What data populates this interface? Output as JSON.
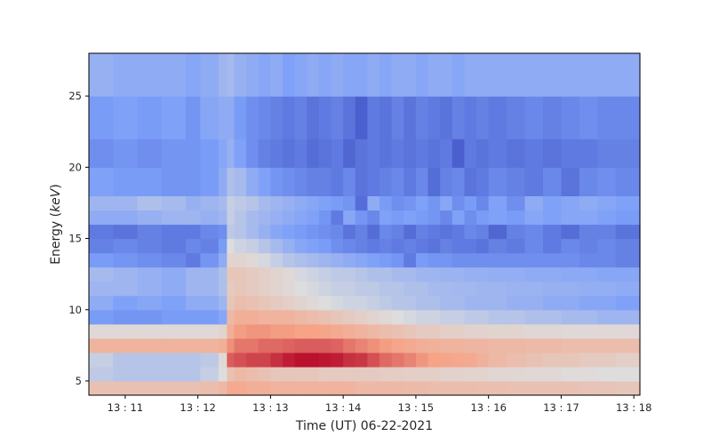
{
  "chart_data": {
    "type": "heatmap",
    "title": "",
    "xlabel": "Time (UT) 06-22-2021",
    "ylabel_prefix": "Energy (",
    "ylabel_unit": "keV",
    "ylabel_suffix": ")",
    "xlim": [
      "13:10:30",
      "13:18:05"
    ],
    "ylim": [
      4.0,
      28.0
    ],
    "x_ticks": [
      {
        "label": "13 : 11",
        "time": "13:11:00"
      },
      {
        "label": "13 : 12",
        "time": "13:12:00"
      },
      {
        "label": "13 : 13",
        "time": "13:13:00"
      },
      {
        "label": "13 : 14",
        "time": "13:14:00"
      },
      {
        "label": "13 : 15",
        "time": "13:15:00"
      },
      {
        "label": "13 : 16",
        "time": "13:16:00"
      },
      {
        "label": "13 : 17",
        "time": "13:17:00"
      },
      {
        "label": "13 : 18",
        "time": "13:18:00"
      }
    ],
    "y_ticks": [
      {
        "label": "5",
        "value": 5
      },
      {
        "label": "10",
        "value": 10
      },
      {
        "label": "15",
        "value": 15
      },
      {
        "label": "20",
        "value": 20
      },
      {
        "label": "25",
        "value": 25
      }
    ],
    "colormap": "coolwarm",
    "energy_bin_edges_keV": [
      4.0,
      5.0,
      6.0,
      7.0,
      8.0,
      9.0,
      10.0,
      11.0,
      12.0,
      13.0,
      14.0,
      15.0,
      16.0,
      17.0,
      18.0,
      20.0,
      22.0,
      25.0,
      28.0
    ],
    "time_bins": [
      {
        "start": "13:10:30",
        "end": "13:10:50"
      },
      {
        "start": "13:10:50",
        "end": "13:11:10"
      },
      {
        "start": "13:11:10",
        "end": "13:11:30"
      },
      {
        "start": "13:11:30",
        "end": "13:11:50"
      },
      {
        "start": "13:11:50",
        "end": "13:12:02"
      },
      {
        "start": "13:12:02",
        "end": "13:12:17"
      },
      {
        "start": "13:12:17",
        "end": "13:12:24"
      },
      {
        "start": "13:12:24",
        "end": "13:12:30"
      },
      {
        "start": "13:12:30",
        "end": "13:12:40"
      },
      {
        "start": "13:12:40",
        "end": "13:12:50"
      },
      {
        "start": "13:12:50",
        "end": "13:13:00"
      },
      {
        "start": "13:13:00",
        "end": "13:13:10"
      },
      {
        "start": "13:13:10",
        "end": "13:13:20"
      },
      {
        "start": "13:13:20",
        "end": "13:13:30"
      },
      {
        "start": "13:13:30",
        "end": "13:13:40"
      },
      {
        "start": "13:13:40",
        "end": "13:13:50"
      },
      {
        "start": "13:13:50",
        "end": "13:14:00"
      },
      {
        "start": "13:14:00",
        "end": "13:14:10"
      },
      {
        "start": "13:14:10",
        "end": "13:14:20"
      },
      {
        "start": "13:14:20",
        "end": "13:14:30"
      },
      {
        "start": "13:14:30",
        "end": "13:14:40"
      },
      {
        "start": "13:14:40",
        "end": "13:14:50"
      },
      {
        "start": "13:14:50",
        "end": "13:15:00"
      },
      {
        "start": "13:15:00",
        "end": "13:15:10"
      },
      {
        "start": "13:15:10",
        "end": "13:15:20"
      },
      {
        "start": "13:15:20",
        "end": "13:15:30"
      },
      {
        "start": "13:15:30",
        "end": "13:15:40"
      },
      {
        "start": "13:15:40",
        "end": "13:15:50"
      },
      {
        "start": "13:15:50",
        "end": "13:16:00"
      },
      {
        "start": "13:16:00",
        "end": "13:16:15"
      },
      {
        "start": "13:16:15",
        "end": "13:16:30"
      },
      {
        "start": "13:16:30",
        "end": "13:16:45"
      },
      {
        "start": "13:16:45",
        "end": "13:17:00"
      },
      {
        "start": "13:17:00",
        "end": "13:17:15"
      },
      {
        "start": "13:17:15",
        "end": "13:17:30"
      },
      {
        "start": "13:17:30",
        "end": "13:17:45"
      },
      {
        "start": "13:17:45",
        "end": "13:18:05"
      }
    ],
    "values_note": "rows ordered from lowest energy bin upward; values are relative intensity on the colormap scale 0..1",
    "values": [
      [
        0.62,
        0.62,
        0.62,
        0.62,
        0.62,
        0.64,
        0.66,
        0.72,
        0.72,
        0.7,
        0.7,
        0.68,
        0.68,
        0.68,
        0.68,
        0.68,
        0.68,
        0.68,
        0.66,
        0.66,
        0.66,
        0.66,
        0.65,
        0.65,
        0.64,
        0.64,
        0.64,
        0.64,
        0.63,
        0.63,
        0.62,
        0.62,
        0.62,
        0.62,
        0.61,
        0.61,
        0.6
      ],
      [
        0.42,
        0.4,
        0.4,
        0.4,
        0.4,
        0.44,
        0.5,
        0.62,
        0.66,
        0.64,
        0.62,
        0.6,
        0.6,
        0.6,
        0.6,
        0.58,
        0.58,
        0.58,
        0.58,
        0.58,
        0.57,
        0.57,
        0.56,
        0.56,
        0.56,
        0.55,
        0.55,
        0.54,
        0.54,
        0.53,
        0.53,
        0.52,
        0.52,
        0.51,
        0.51,
        0.5,
        0.5
      ],
      [
        0.44,
        0.4,
        0.4,
        0.4,
        0.4,
        0.42,
        0.52,
        0.86,
        0.88,
        0.9,
        0.9,
        0.93,
        0.96,
        0.98,
        0.98,
        0.97,
        0.96,
        0.93,
        0.92,
        0.88,
        0.84,
        0.82,
        0.8,
        0.77,
        0.75,
        0.74,
        0.73,
        0.72,
        0.69,
        0.66,
        0.64,
        0.62,
        0.6,
        0.6,
        0.58,
        0.58,
        0.56
      ],
      [
        0.68,
        0.68,
        0.68,
        0.68,
        0.68,
        0.68,
        0.7,
        0.78,
        0.82,
        0.82,
        0.84,
        0.84,
        0.85,
        0.86,
        0.86,
        0.86,
        0.85,
        0.82,
        0.8,
        0.78,
        0.76,
        0.74,
        0.72,
        0.7,
        0.69,
        0.68,
        0.68,
        0.67,
        0.67,
        0.66,
        0.66,
        0.65,
        0.65,
        0.64,
        0.64,
        0.64,
        0.64
      ],
      [
        0.52,
        0.52,
        0.52,
        0.52,
        0.52,
        0.52,
        0.54,
        0.7,
        0.76,
        0.77,
        0.77,
        0.76,
        0.76,
        0.75,
        0.75,
        0.74,
        0.72,
        0.7,
        0.68,
        0.66,
        0.64,
        0.62,
        0.6,
        0.58,
        0.58,
        0.56,
        0.56,
        0.55,
        0.55,
        0.54,
        0.54,
        0.53,
        0.53,
        0.52,
        0.52,
        0.52,
        0.52
      ],
      [
        0.24,
        0.22,
        0.22,
        0.24,
        0.24,
        0.24,
        0.28,
        0.66,
        0.7,
        0.7,
        0.68,
        0.68,
        0.68,
        0.66,
        0.64,
        0.62,
        0.6,
        0.58,
        0.56,
        0.54,
        0.52,
        0.5,
        0.48,
        0.46,
        0.46,
        0.44,
        0.44,
        0.42,
        0.42,
        0.4,
        0.4,
        0.38,
        0.38,
        0.36,
        0.36,
        0.34,
        0.34
      ],
      [
        0.3,
        0.26,
        0.28,
        0.26,
        0.3,
        0.3,
        0.34,
        0.6,
        0.64,
        0.62,
        0.6,
        0.58,
        0.56,
        0.54,
        0.52,
        0.5,
        0.48,
        0.46,
        0.46,
        0.44,
        0.42,
        0.4,
        0.4,
        0.38,
        0.38,
        0.36,
        0.36,
        0.34,
        0.34,
        0.34,
        0.32,
        0.32,
        0.3,
        0.3,
        0.28,
        0.28,
        0.26
      ],
      [
        0.34,
        0.34,
        0.32,
        0.3,
        0.34,
        0.34,
        0.38,
        0.58,
        0.6,
        0.58,
        0.56,
        0.54,
        0.52,
        0.5,
        0.48,
        0.46,
        0.44,
        0.44,
        0.42,
        0.42,
        0.4,
        0.4,
        0.38,
        0.38,
        0.36,
        0.36,
        0.35,
        0.35,
        0.34,
        0.34,
        0.33,
        0.33,
        0.32,
        0.32,
        0.31,
        0.31,
        0.3
      ],
      [
        0.36,
        0.34,
        0.32,
        0.3,
        0.34,
        0.34,
        0.38,
        0.6,
        0.6,
        0.58,
        0.56,
        0.54,
        0.52,
        0.48,
        0.46,
        0.44,
        0.42,
        0.42,
        0.4,
        0.38,
        0.38,
        0.36,
        0.36,
        0.34,
        0.34,
        0.33,
        0.33,
        0.32,
        0.32,
        0.31,
        0.31,
        0.3,
        0.3,
        0.29,
        0.29,
        0.28,
        0.28
      ],
      [
        0.24,
        0.22,
        0.2,
        0.18,
        0.14,
        0.22,
        0.3,
        0.54,
        0.54,
        0.52,
        0.48,
        0.44,
        0.4,
        0.38,
        0.36,
        0.34,
        0.32,
        0.3,
        0.28,
        0.26,
        0.24,
        0.22,
        0.14,
        0.24,
        0.22,
        0.22,
        0.2,
        0.2,
        0.2,
        0.2,
        0.2,
        0.2,
        0.2,
        0.2,
        0.18,
        0.18,
        0.16
      ],
      [
        0.16,
        0.18,
        0.16,
        0.14,
        0.18,
        0.16,
        0.24,
        0.5,
        0.46,
        0.44,
        0.4,
        0.36,
        0.32,
        0.28,
        0.26,
        0.24,
        0.2,
        0.18,
        0.16,
        0.14,
        0.16,
        0.14,
        0.16,
        0.14,
        0.12,
        0.16,
        0.14,
        0.14,
        0.12,
        0.16,
        0.14,
        0.18,
        0.14,
        0.18,
        0.16,
        0.18,
        0.16
      ],
      [
        0.14,
        0.12,
        0.16,
        0.14,
        0.14,
        0.18,
        0.2,
        0.42,
        0.4,
        0.36,
        0.32,
        0.28,
        0.26,
        0.24,
        0.22,
        0.2,
        0.18,
        0.12,
        0.16,
        0.1,
        0.18,
        0.16,
        0.1,
        0.16,
        0.14,
        0.12,
        0.14,
        0.18,
        0.16,
        0.08,
        0.16,
        0.18,
        0.14,
        0.1,
        0.16,
        0.16,
        0.12
      ],
      [
        0.3,
        0.3,
        0.32,
        0.34,
        0.34,
        0.32,
        0.34,
        0.44,
        0.4,
        0.36,
        0.34,
        0.32,
        0.3,
        0.28,
        0.26,
        0.22,
        0.14,
        0.28,
        0.22,
        0.18,
        0.26,
        0.24,
        0.26,
        0.24,
        0.22,
        0.18,
        0.26,
        0.2,
        0.24,
        0.26,
        0.24,
        0.28,
        0.26,
        0.28,
        0.28,
        0.26,
        0.24
      ],
      [
        0.34,
        0.34,
        0.38,
        0.36,
        0.32,
        0.34,
        0.36,
        0.44,
        0.42,
        0.4,
        0.36,
        0.34,
        0.32,
        0.3,
        0.28,
        0.26,
        0.24,
        0.22,
        0.1,
        0.3,
        0.24,
        0.2,
        0.22,
        0.26,
        0.22,
        0.28,
        0.2,
        0.24,
        0.18,
        0.26,
        0.2,
        0.3,
        0.26,
        0.28,
        0.3,
        0.28,
        0.26
      ],
      [
        0.26,
        0.24,
        0.24,
        0.22,
        0.22,
        0.24,
        0.3,
        0.38,
        0.36,
        0.3,
        0.26,
        0.22,
        0.2,
        0.18,
        0.16,
        0.16,
        0.14,
        0.18,
        0.12,
        0.14,
        0.16,
        0.18,
        0.14,
        0.18,
        0.1,
        0.16,
        0.18,
        0.12,
        0.14,
        0.18,
        0.16,
        0.14,
        0.18,
        0.12,
        0.18,
        0.2,
        0.18
      ],
      [
        0.2,
        0.22,
        0.2,
        0.22,
        0.22,
        0.24,
        0.28,
        0.32,
        0.26,
        0.2,
        0.16,
        0.14,
        0.12,
        0.14,
        0.1,
        0.12,
        0.14,
        0.08,
        0.12,
        0.14,
        0.12,
        0.14,
        0.12,
        0.14,
        0.12,
        0.14,
        0.06,
        0.14,
        0.12,
        0.14,
        0.12,
        0.14,
        0.12,
        0.14,
        0.14,
        0.16,
        0.16
      ],
      [
        0.24,
        0.26,
        0.24,
        0.26,
        0.22,
        0.28,
        0.3,
        0.3,
        0.24,
        0.2,
        0.18,
        0.16,
        0.14,
        0.16,
        0.12,
        0.14,
        0.16,
        0.12,
        0.06,
        0.14,
        0.12,
        0.16,
        0.12,
        0.16,
        0.14,
        0.12,
        0.16,
        0.14,
        0.16,
        0.14,
        0.16,
        0.18,
        0.16,
        0.18,
        0.2,
        0.18,
        0.18
      ],
      [
        0.32,
        0.3,
        0.3,
        0.3,
        0.28,
        0.3,
        0.34,
        0.36,
        0.32,
        0.3,
        0.28,
        0.3,
        0.26,
        0.28,
        0.3,
        0.28,
        0.3,
        0.28,
        0.28,
        0.3,
        0.28,
        0.3,
        0.3,
        0.28,
        0.3,
        0.3,
        0.28,
        0.3,
        0.3,
        0.3,
        0.3,
        0.3,
        0.3,
        0.3,
        0.3,
        0.3,
        0.3
      ]
    ]
  }
}
